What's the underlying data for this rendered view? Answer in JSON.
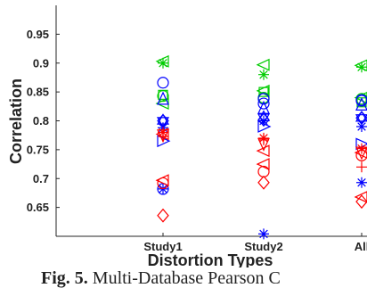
{
  "chart_data": {
    "type": "scatter",
    "xlabel": "Distortion Types",
    "ylabel": "Correlation",
    "categories": [
      "Study1",
      "Study2",
      "All"
    ],
    "ylim": [
      0.6,
      1.0
    ],
    "yticks": [
      "0.65",
      "0.7",
      "0.75",
      "0.8",
      "0.85",
      "0.9",
      "0.95"
    ],
    "grid": false,
    "series": [
      {
        "color": "#00cc00",
        "marker": "triangle-left",
        "values": [
          0.903,
          0.897,
          0.896
        ]
      },
      {
        "color": "#00cc00",
        "marker": "star",
        "values": [
          0.9,
          0.88,
          0.893
        ]
      },
      {
        "color": "#00cc00",
        "marker": "triangle-left",
        "values": [
          0.83,
          0.852,
          0.84
        ]
      },
      {
        "color": "#00cc00",
        "marker": "square",
        "values": [
          0.845,
          0.85,
          0.832
        ]
      },
      {
        "color": "#00cc00",
        "marker": "circle",
        "values": [
          0.843,
          0.84,
          0.838
        ]
      },
      {
        "color": "#0000ff",
        "marker": "circle",
        "values": [
          0.866,
          0.838,
          0.836
        ]
      },
      {
        "color": "#0000ff",
        "marker": "triangle-up",
        "values": [
          0.838,
          0.822,
          0.828
        ]
      },
      {
        "color": "#0000ff",
        "marker": "diamond",
        "values": [
          0.8,
          0.802,
          0.805
        ]
      },
      {
        "color": "#0000ff",
        "marker": "hexagram",
        "values": [
          0.8,
          0.806,
          0.805
        ]
      },
      {
        "color": "#0000ff",
        "marker": "star",
        "values": [
          0.788,
          0.8,
          0.79
        ]
      },
      {
        "color": "#0000ff",
        "marker": "triangle-right",
        "values": [
          0.765,
          0.79,
          0.76
        ]
      },
      {
        "color": "#0000ff",
        "marker": "circle",
        "values": [
          0.682,
          0.83,
          0.835
        ]
      },
      {
        "color": "#0000ff",
        "marker": "star",
        "values": [
          0.682,
          0.604,
          0.693
        ]
      },
      {
        "color": "#ff0000",
        "marker": "star",
        "values": [
          0.78,
          0.77,
          0.752
        ]
      },
      {
        "color": "#ff0000",
        "marker": "plus",
        "values": [
          0.773,
          0.767,
          0.72
        ]
      },
      {
        "color": "#ff0000",
        "marker": "triangle-down",
        "values": [
          0.775,
          0.76,
          0.745
        ]
      },
      {
        "color": "#ff0000",
        "marker": "triangle-left",
        "values": [
          0.697,
          0.725,
          0.745
        ]
      },
      {
        "color": "#ff0000",
        "marker": "circle",
        "values": [
          0.692,
          0.712,
          0.74
        ]
      },
      {
        "color": "#ff0000",
        "marker": "diamond",
        "values": [
          0.636,
          0.693,
          0.66
        ]
      },
      {
        "color": "#ff0000",
        "marker": "triangle-left",
        "values": [
          0.777,
          0.748,
          0.668
        ]
      }
    ]
  },
  "caption": {
    "label": "Fig. 5.",
    "text": "Multi-Database Pearson C"
  }
}
